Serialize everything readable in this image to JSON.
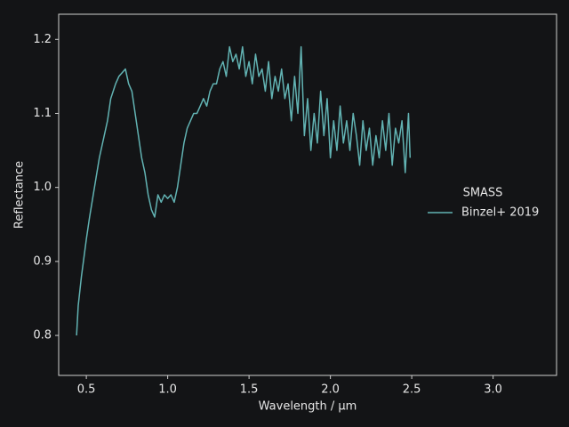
{
  "chart_data": {
    "type": "line",
    "xlabel": "Wavelength / µm",
    "ylabel": "Reflectance",
    "legend": {
      "title": "SMASS",
      "loc": "center right"
    },
    "xlim": [
      0.33,
      3.39
    ],
    "ylim": [
      0.746,
      1.234
    ],
    "xticks": [
      0.5,
      {
        "value": 1.0,
        "label": "1.0"
      },
      1.5,
      {
        "value": 2.0,
        "label": "2.0"
      },
      2.5,
      {
        "value": 3.0,
        "label": "3.0"
      }
    ],
    "yticks": [
      0.8,
      0.9,
      {
        "value": 1.0,
        "label": "1.0"
      },
      1.1,
      1.2
    ],
    "x": [
      0.44,
      0.45,
      0.47,
      0.5,
      0.52,
      0.55,
      0.58,
      0.6,
      0.63,
      0.65,
      0.68,
      0.7,
      0.72,
      0.74,
      0.76,
      0.78,
      0.8,
      0.82,
      0.84,
      0.86,
      0.88,
      0.9,
      0.92,
      0.94,
      0.96,
      0.98,
      1.0,
      1.02,
      1.04,
      1.06,
      1.08,
      1.1,
      1.12,
      1.14,
      1.16,
      1.18,
      1.2,
      1.22,
      1.24,
      1.26,
      1.28,
      1.3,
      1.32,
      1.34,
      1.36,
      1.38,
      1.4,
      1.42,
      1.44,
      1.46,
      1.48,
      1.5,
      1.52,
      1.54,
      1.56,
      1.58,
      1.6,
      1.62,
      1.64,
      1.66,
      1.68,
      1.7,
      1.72,
      1.74,
      1.76,
      1.78,
      1.8,
      1.82,
      1.84,
      1.86,
      1.88,
      1.9,
      1.92,
      1.94,
      1.96,
      1.98,
      2.0,
      2.02,
      2.04,
      2.06,
      2.08,
      2.1,
      2.12,
      2.14,
      2.16,
      2.18,
      2.2,
      2.22,
      2.24,
      2.26,
      2.28,
      2.3,
      2.32,
      2.34,
      2.36,
      2.38,
      2.4,
      2.42,
      2.44,
      2.46,
      2.48,
      2.49
    ],
    "series": [
      {
        "name": "Binzel+ 2019",
        "color": "#62b3b3",
        "values": [
          0.8,
          0.84,
          0.88,
          0.93,
          0.96,
          1.0,
          1.04,
          1.06,
          1.09,
          1.12,
          1.14,
          1.15,
          1.155,
          1.16,
          1.14,
          1.13,
          1.1,
          1.07,
          1.04,
          1.02,
          0.99,
          0.97,
          0.96,
          0.99,
          0.98,
          0.99,
          0.985,
          0.99,
          0.98,
          1.0,
          1.03,
          1.06,
          1.08,
          1.09,
          1.1,
          1.1,
          1.11,
          1.12,
          1.11,
          1.13,
          1.14,
          1.14,
          1.16,
          1.17,
          1.15,
          1.19,
          1.17,
          1.18,
          1.16,
          1.19,
          1.15,
          1.17,
          1.14,
          1.18,
          1.15,
          1.16,
          1.13,
          1.17,
          1.12,
          1.15,
          1.13,
          1.16,
          1.12,
          1.14,
          1.09,
          1.15,
          1.1,
          1.19,
          1.07,
          1.12,
          1.05,
          1.1,
          1.06,
          1.13,
          1.07,
          1.12,
          1.04,
          1.09,
          1.05,
          1.11,
          1.06,
          1.09,
          1.05,
          1.1,
          1.07,
          1.03,
          1.09,
          1.05,
          1.08,
          1.03,
          1.07,
          1.04,
          1.09,
          1.05,
          1.1,
          1.03,
          1.08,
          1.06,
          1.09,
          1.02,
          1.1,
          1.04
        ]
      }
    ]
  }
}
